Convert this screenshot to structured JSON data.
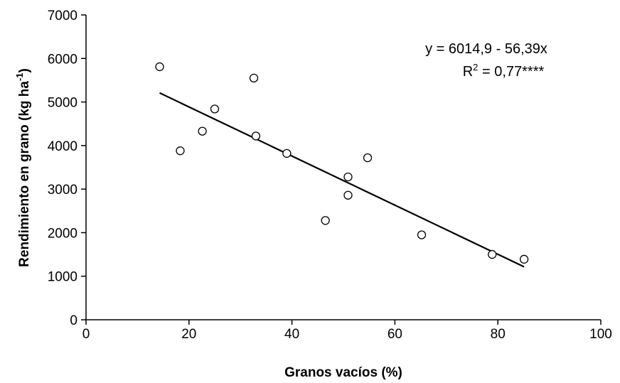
{
  "chart_data": {
    "type": "scatter",
    "title": "",
    "xlabel": "Granos vacíos (%)",
    "ylabel": {
      "main": "Rendimiento en grano (kg ha",
      "superscript": "-1",
      "close": ")"
    },
    "xlim": [
      0,
      100
    ],
    "ylim": [
      0,
      7000
    ],
    "x_ticks": [
      0,
      20,
      40,
      60,
      80,
      100
    ],
    "y_ticks": [
      0,
      1000,
      2000,
      3000,
      4000,
      5000,
      6000,
      7000
    ],
    "grid": false,
    "legend": "none",
    "points": [
      {
        "x": 14.3,
        "y": 5810
      },
      {
        "x": 18.3,
        "y": 3880
      },
      {
        "x": 22.6,
        "y": 4330
      },
      {
        "x": 25.0,
        "y": 4840
      },
      {
        "x": 32.6,
        "y": 5550
      },
      {
        "x": 33.0,
        "y": 4220
      },
      {
        "x": 39.0,
        "y": 3820
      },
      {
        "x": 46.5,
        "y": 2280
      },
      {
        "x": 50.9,
        "y": 3280
      },
      {
        "x": 50.9,
        "y": 2860
      },
      {
        "x": 54.7,
        "y": 3720
      },
      {
        "x": 65.2,
        "y": 1950
      },
      {
        "x": 78.9,
        "y": 1500
      },
      {
        "x": 85.1,
        "y": 1390
      }
    ],
    "trendline": {
      "intercept": 6014.9,
      "slope": -56.39,
      "x_range": [
        14.3,
        85.1
      ]
    },
    "annotation": {
      "equation": "y = 6014,9 - 56,39x",
      "r2_prefix": "R",
      "r2_sup": "2",
      "r2_value": " = 0,77****"
    },
    "marker": {
      "shape": "circle",
      "fill": "#ffffff",
      "stroke": "#000000"
    },
    "line_color": "#000000"
  }
}
